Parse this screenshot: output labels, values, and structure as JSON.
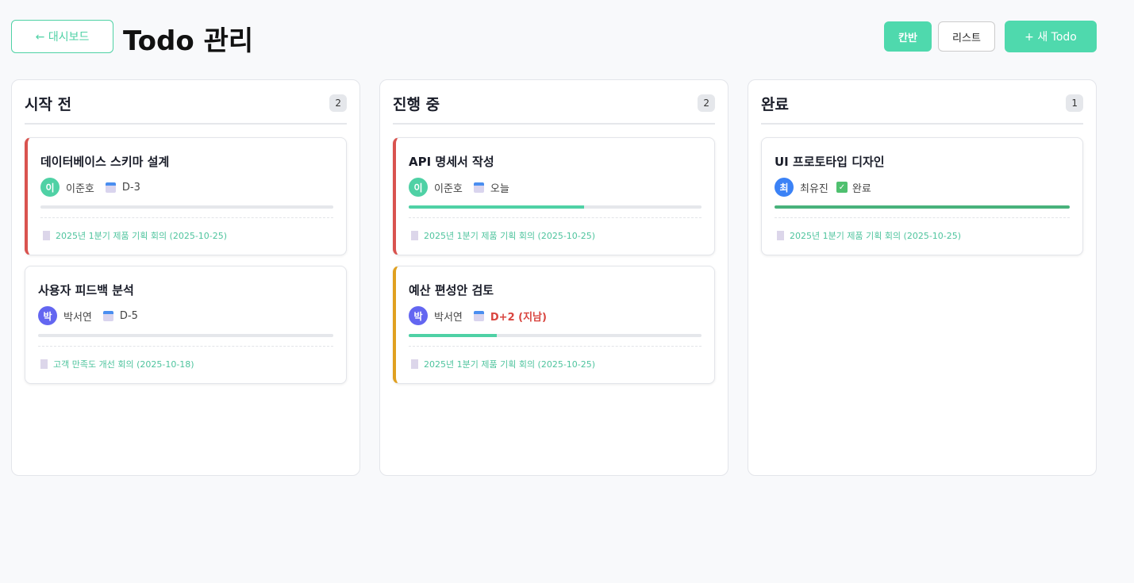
{
  "header": {
    "back_label": "← 대시보드",
    "title": "Todo 관리",
    "kanban_label": "칸반",
    "list_label": "리스트",
    "new_label": "+ 새 Todo",
    "active_view": "칸반"
  },
  "colors": {
    "accent": "#4fd9ad",
    "overdue": "#d9453f",
    "high_priority": "#d9534f",
    "medium_priority": "#e0a020"
  },
  "columns": [
    {
      "title": "시작 전",
      "count": "2",
      "cards": [
        {
          "title": "데이터베이스 스키마 설계",
          "avatar": "이",
          "assignee": "이준호",
          "due": "D-3",
          "progress": 0,
          "meeting": "2025년 1분기 제품 기획 회의 (2025-10-25)"
        },
        {
          "title": "사용자 피드백 분석",
          "avatar": "박",
          "assignee": "박서연",
          "due": "D-5",
          "progress": 0,
          "meeting": "고객 만족도 개선 회의 (2025-10-18)"
        }
      ]
    },
    {
      "title": "진행 중",
      "count": "2",
      "cards": [
        {
          "title": "API 명세서 작성",
          "avatar": "이",
          "assignee": "이준호",
          "due": "오늘",
          "progress": 60,
          "meeting": "2025년 1분기 제품 기획 회의 (2025-10-25)"
        },
        {
          "title": "예산 편성안 검토",
          "avatar": "박",
          "assignee": "박서연",
          "due": "D+2 (지남)",
          "progress": 30,
          "meeting": "2025년 1분기 제품 기획 회의 (2025-10-25)"
        }
      ]
    },
    {
      "title": "완료",
      "count": "1",
      "cards": [
        {
          "title": "UI 프로토타입 디자인",
          "avatar": "최",
          "assignee": "최유진",
          "due": "완료",
          "progress": 100,
          "meeting": "2025년 1분기 제품 기획 회의 (2025-10-25)"
        }
      ]
    }
  ]
}
